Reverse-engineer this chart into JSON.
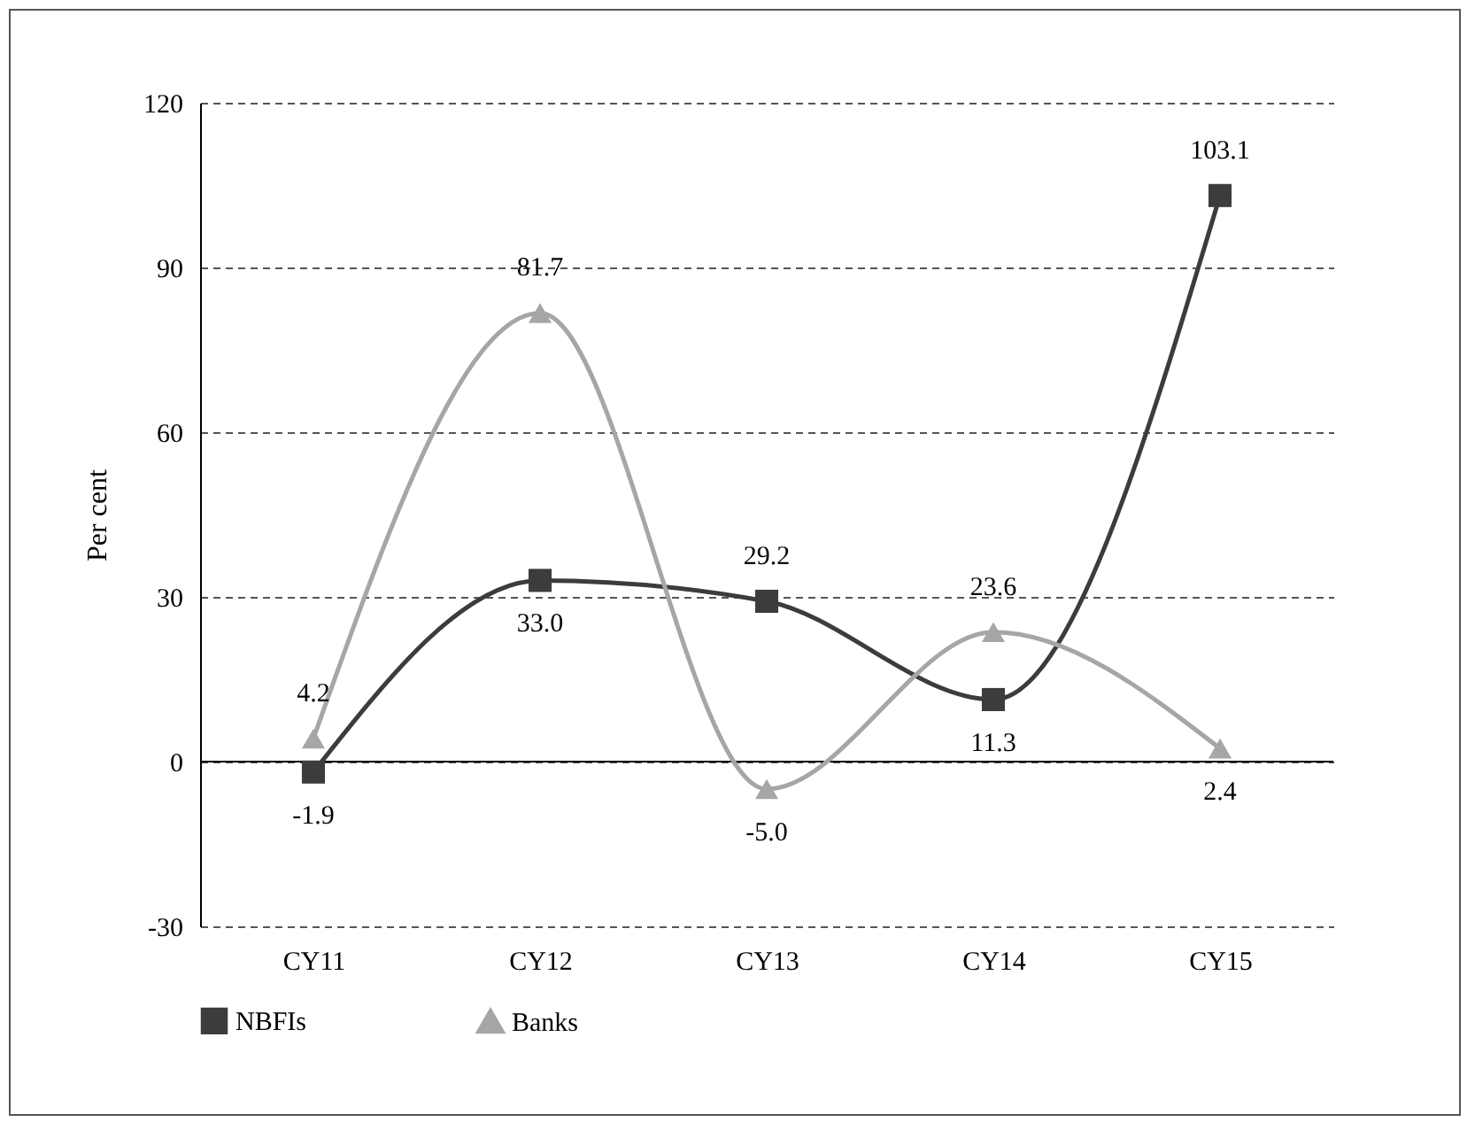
{
  "chart_data": {
    "type": "line",
    "categories": [
      "CY11",
      "CY12",
      "CY13",
      "CY14",
      "CY15"
    ],
    "ylabel": "Per cent",
    "ylim": [
      -30,
      120
    ],
    "yticks": [
      -30,
      0,
      30,
      60,
      90,
      120
    ],
    "grid": "y",
    "legend": "bottom",
    "ref_lines": [
      {
        "axis": "y",
        "value": 0,
        "color": "#000000",
        "line_style": "solid"
      }
    ],
    "series": [
      {
        "name": "NBFIs",
        "color": "#3c3c3c",
        "marker": "square",
        "values": [
          -1.9,
          33.0,
          29.2,
          11.3,
          103.1
        ],
        "value_labels": [
          "-1.9",
          "33.0",
          "29.2",
          "11.3",
          "103.1"
        ]
      },
      {
        "name": "Banks",
        "color": "#a6a6a6",
        "marker": "triangle",
        "values": [
          4.2,
          81.7,
          -5.0,
          23.6,
          2.4
        ],
        "value_labels": [
          "4.2",
          "81.7",
          "-5.0",
          "23.6",
          "2.4"
        ]
      }
    ]
  }
}
